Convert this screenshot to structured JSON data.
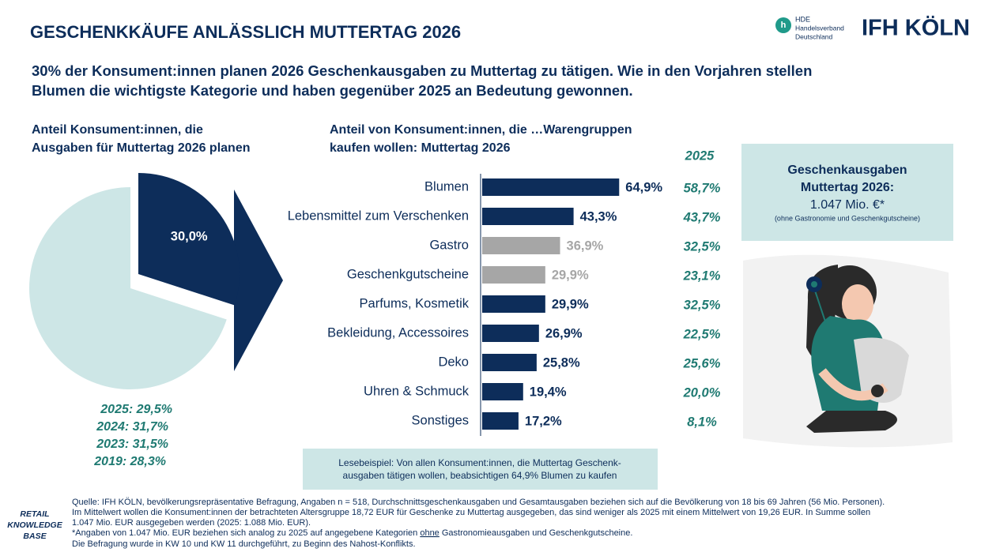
{
  "header": {
    "title": "GESCHENKKÄUFE ANLÄSSLICH MUTTERTAG 2026",
    "subtitle": [
      "30% der Konsument:innen planen 2026 Geschenkausgaben zu Muttertag zu tätigen. Wie in den Vorjahren stellen",
      "Blumen die wichtigste Kategorie und haben gegenüber 2025 an Bedeutung gewonnen."
    ],
    "logo_hde": [
      "HDE",
      "Handelsverband",
      "Deutschland"
    ],
    "logo_ifh": "IFH KÖLN"
  },
  "chart_data": [
    {
      "type": "pie",
      "title": [
        "Anteil Konsument:innen, die",
        "Ausgaben für Muttertag 2026 planen"
      ],
      "values": [
        30.0,
        70.0
      ],
      "value_labels": [
        "30,0%",
        null
      ],
      "colors": [
        "#0d2d5a",
        "#cde6e6"
      ],
      "history": [
        "2025: 29,5%",
        "2024: 31,7%",
        "2023: 31,5%",
        "2019: 28,3%"
      ]
    },
    {
      "type": "hbar",
      "title": [
        "Anteil von Konsument:innen, die …Warengruppen",
        "kaufen wollen: Muttertag 2026"
      ],
      "categories": [
        "Blumen",
        "Lebensmittel zum Verschenken",
        "Gastro",
        "Geschenkgutscheine",
        "Parfums, Kosmetik",
        "Bekleidung, Accessoires",
        "Deko",
        "Uhren & Schmuck",
        "Sonstiges"
      ],
      "values": [
        64.9,
        43.3,
        36.9,
        29.9,
        29.9,
        26.9,
        25.8,
        19.4,
        17.2
      ],
      "value_labels": [
        "64,9%",
        "43,3%",
        "36,9%",
        "29,9%",
        "29,9%",
        "26,9%",
        "25,8%",
        "19,4%",
        "17,2%"
      ],
      "colors": [
        "#0d2d5a",
        "#0d2d5a",
        "#a6a6a6",
        "#a6a6a6",
        "#0d2d5a",
        "#0d2d5a",
        "#0d2d5a",
        "#0d2d5a",
        "#0d2d5a"
      ],
      "comparison": {
        "title": "2025",
        "values": [
          58.7,
          43.7,
          32.5,
          23.1,
          32.5,
          22.5,
          25.6,
          20.0,
          8.1
        ],
        "value_labels": [
          "58,7%",
          "43,7%",
          "32,5%",
          "23,1%",
          "32,5%",
          "22,5%",
          "25,6%",
          "20,0%",
          "8,1%"
        ]
      }
    }
  ],
  "info_box": [
    "Geschenkausgaben",
    "Muttertag 2026:",
    "1.047 Mio. €*",
    "(ohne Gastronomie und Geschenkgutscheine)"
  ],
  "reading_example": [
    "Lesebeispiel: Von allen Konsument:innen, die Muttertag Geschenk-",
    "ausgaben tätigen wollen, beabsichtigen 64,9% Blumen zu kaufen"
  ],
  "badge": [
    "RETAIL",
    "KNOWLEDGE",
    "BASE"
  ],
  "source": {
    "lines": [
      "Quelle: IFH KÖLN, bevölkerungsrepräsentative Befragung, Angaben n = 518, Durchschnittsgeschenkausgaben und Gesamtausgaben beziehen sich auf die Bevölkerung von 18 bis 69 Jahren (56 Mio. Personen).",
      "Im Mittelwert wollen die Konsument:innen  der betrachteten Altersgruppe 18,72 EUR für Geschenke zu Muttertag ausgegeben, das sind weniger als 2025 mit einem Mittelwert von 19,26 EUR. In Summe sollen",
      "1.047 Mio. EUR ausgegeben werden (2025: 1.088 Mio. EUR)."
    ],
    "note": [
      " *Angaben von 1.047 Mio. EUR beziehen sich analog zu 2025 auf angegebene Kategorien ",
      "ohne",
      " Gastronomieausgaben und Geschenkgutscheine."
    ],
    "last": "Die Befragung wurde in KW 10 und KW 11 durchgeführt, zu Beginn des Nahost-Konflikts."
  }
}
